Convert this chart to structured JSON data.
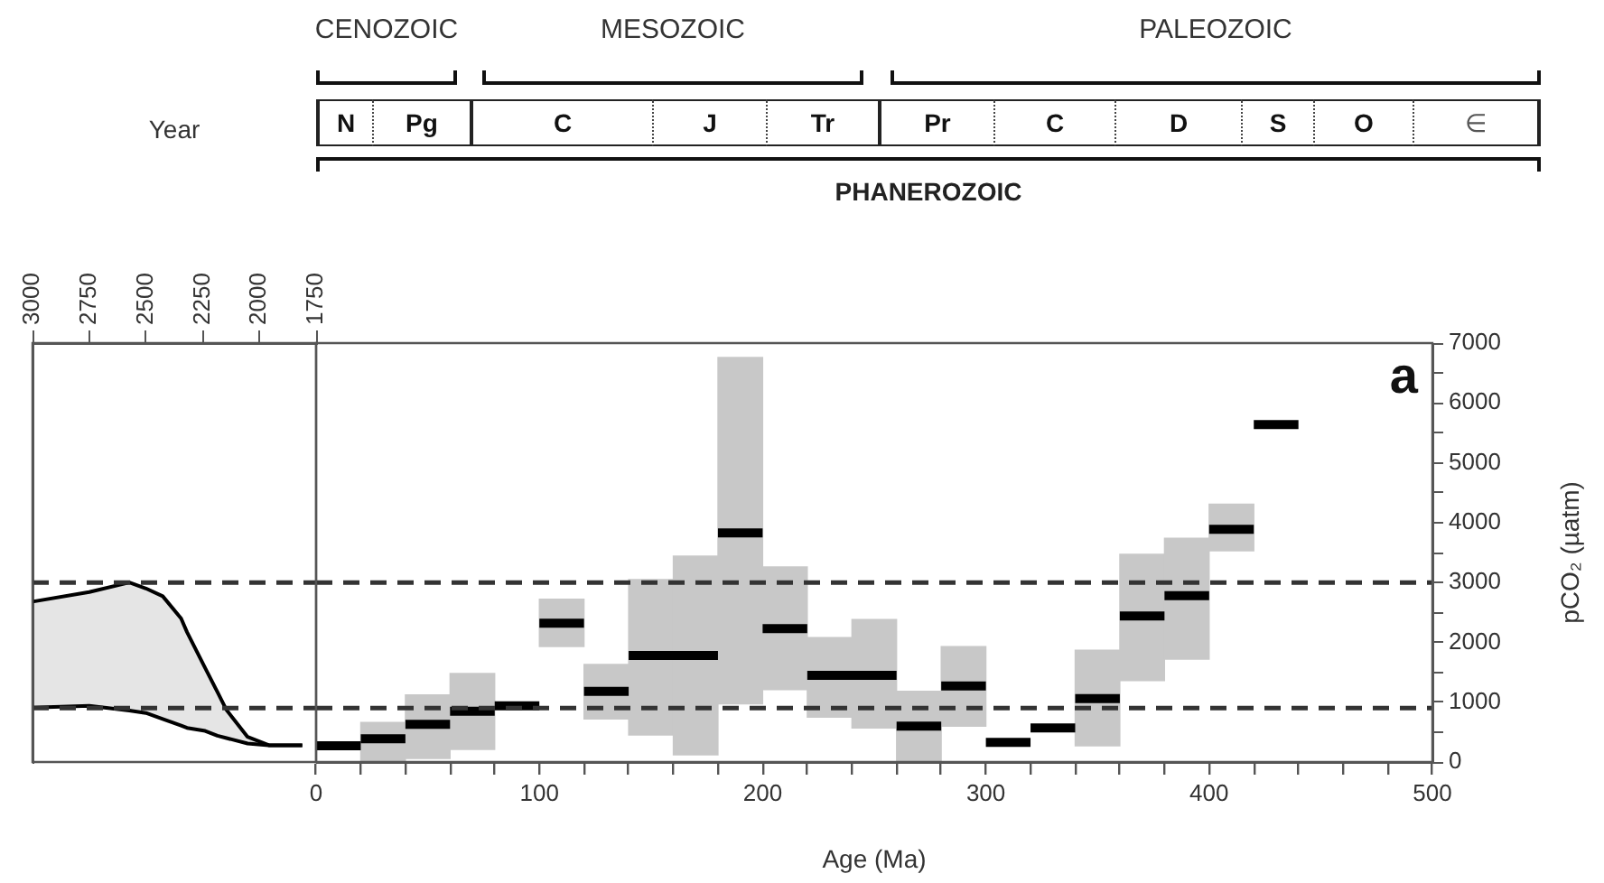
{
  "chart_data": [
    {
      "type": "line",
      "xlabel": "Year",
      "xlim": [
        3000,
        1750
      ],
      "xticks": [
        3000,
        2750,
        2500,
        2250,
        2000,
        1750
      ],
      "ylim": [
        0,
        7000
      ],
      "tick_labels": "x",
      "series": [
        {
          "type": "line",
          "color": "#000000",
          "x": [
            3000,
            2750,
            2573,
            2500,
            2426,
            2345,
            2319,
            2239,
            2185,
            2145,
            2052,
            1958,
            1811
          ],
          "values": [
            910,
            940,
            860,
            820,
            720,
            610,
            570,
            520,
            440,
            400,
            310,
            280,
            280
          ]
        },
        {
          "type": "line",
          "color": "#000000",
          "x": [
            3000,
            2750,
            2573,
            2500,
            2426,
            2345,
            2319,
            2239,
            2185,
            2145,
            2052,
            1958,
            1811
          ],
          "values": [
            2680,
            2840,
            3000,
            2900,
            2770,
            2400,
            2170,
            1570,
            1170,
            870,
            420,
            280,
            280
          ],
          "lower": [
            910,
            940,
            860,
            820,
            720,
            610,
            570,
            520,
            440,
            400,
            310,
            280,
            280
          ],
          "upper": [
            2680,
            2840,
            3000,
            2900,
            2770,
            2400,
            2170,
            1570,
            1170,
            870,
            420,
            280,
            280
          ]
        }
      ],
      "ref_lines": [
        {
          "axis": "y",
          "value": 3000,
          "color": "#333333",
          "line_style": "dashed"
        },
        {
          "axis": "y",
          "value": 900,
          "color": "#333333",
          "line_style": "dashed"
        }
      ]
    },
    {
      "type": "bar",
      "xlabel": "Age (Ma)",
      "ylabel": "pCO₂ (µatm)",
      "xlim": [
        0,
        500
      ],
      "xticks": [
        0,
        {
          "value": 20,
          "label": null
        },
        {
          "value": 40,
          "label": null
        },
        {
          "value": 60,
          "label": null
        },
        {
          "value": 80,
          "label": null
        },
        100,
        {
          "value": 120,
          "label": null
        },
        {
          "value": 140,
          "label": null
        },
        {
          "value": 160,
          "label": null
        },
        {
          "value": 180,
          "label": null
        },
        200,
        {
          "value": 220,
          "label": null
        },
        {
          "value": 240,
          "label": null
        },
        {
          "value": 260,
          "label": null
        },
        {
          "value": 280,
          "label": null
        },
        300,
        {
          "value": 320,
          "label": null
        },
        {
          "value": 340,
          "label": null
        },
        {
          "value": 360,
          "label": null
        },
        {
          "value": 380,
          "label": null
        },
        400,
        {
          "value": 420,
          "label": null
        },
        {
          "value": 440,
          "label": null
        },
        {
          "value": 460,
          "label": null
        },
        {
          "value": 480,
          "label": null
        },
        500
      ],
      "ylim": [
        0,
        7000
      ],
      "yticks": [
        0,
        {
          "value": 500,
          "label": null
        },
        1000,
        {
          "value": 1500,
          "label": null
        },
        2000,
        {
          "value": 2500,
          "label": null
        },
        3000,
        {
          "value": 3500,
          "label": null
        },
        4000,
        {
          "value": 4500,
          "label": null
        },
        5000,
        {
          "value": 5500,
          "label": null
        },
        6000,
        {
          "value": 6500,
          "label": null
        },
        7000
      ],
      "series": [
        {
          "type": "bar",
          "color": "#c8c8c8",
          "x": [
            30,
            50,
            70,
            110,
            130,
            150,
            170,
            190,
            210,
            230,
            250,
            270,
            290,
            350,
            370,
            390,
            410
          ],
          "base": [
            0,
            60,
            210,
            1930,
            720,
            450,
            120,
            970,
            1210,
            750,
            570,
            0,
            600,
            270,
            1360,
            1720,
            3530
          ],
          "values": [
            660,
            1060,
            1270,
            790,
            910,
            2600,
            3320,
            5790,
            2050,
            1330,
            1810,
            1180,
            1330,
            1600,
            2110,
            2020,
            780
          ]
        },
        {
          "type": "line",
          "color": "#000000",
          "x": [
            0,
            20
          ],
          "values": [
            270,
            270
          ]
        },
        {
          "type": "line",
          "color": "#000000",
          "x": [
            20,
            40
          ],
          "values": [
            390,
            390
          ]
        },
        {
          "type": "line",
          "color": "#000000",
          "x": [
            40,
            60
          ],
          "values": [
            630,
            630
          ]
        },
        {
          "type": "line",
          "color": "#000000",
          "x": [
            60,
            80
          ],
          "values": [
            850,
            850
          ]
        },
        {
          "type": "line",
          "color": "#000000",
          "x": [
            80,
            100
          ],
          "values": [
            940,
            940
          ]
        },
        {
          "type": "line",
          "color": "#000000",
          "x": [
            100,
            120
          ],
          "values": [
            2320,
            2320
          ]
        },
        {
          "type": "line",
          "color": "#000000",
          "x": [
            120,
            140
          ],
          "values": [
            1180,
            1180
          ]
        },
        {
          "type": "line",
          "color": "#000000",
          "x": [
            140,
            160,
            180
          ],
          "values": [
            1780,
            1780,
            1780
          ]
        },
        {
          "type": "line",
          "color": "#000000",
          "x": [
            180,
            200
          ],
          "values": [
            3830,
            3830
          ]
        },
        {
          "type": "line",
          "color": "#000000",
          "x": [
            200,
            220
          ],
          "values": [
            2230,
            2230
          ]
        },
        {
          "type": "line",
          "color": "#000000",
          "x": [
            220,
            240,
            260
          ],
          "values": [
            1450,
            1450,
            1450
          ]
        },
        {
          "type": "line",
          "color": "#000000",
          "x": [
            260,
            280
          ],
          "values": [
            600,
            600
          ]
        },
        {
          "type": "line",
          "color": "#000000",
          "x": [
            280,
            300
          ],
          "values": [
            1270,
            1270
          ]
        },
        {
          "type": "line",
          "color": "#000000",
          "x": [
            300,
            320
          ],
          "values": [
            330,
            330
          ]
        },
        {
          "type": "line",
          "color": "#000000",
          "x": [
            320,
            340
          ],
          "values": [
            570,
            570
          ]
        },
        {
          "type": "line",
          "color": "#000000",
          "x": [
            340,
            360
          ],
          "values": [
            1060,
            1060
          ]
        },
        {
          "type": "line",
          "color": "#000000",
          "x": [
            360,
            380
          ],
          "values": [
            2440,
            2440
          ]
        },
        {
          "type": "line",
          "color": "#000000",
          "x": [
            380,
            400
          ],
          "values": [
            2780,
            2780
          ]
        },
        {
          "type": "line",
          "color": "#000000",
          "x": [
            400,
            420
          ],
          "values": [
            3890,
            3890
          ]
        },
        {
          "type": "line",
          "color": "#000000",
          "x": [
            420,
            440
          ],
          "values": [
            5640,
            5640
          ]
        }
      ],
      "ref_lines": [
        {
          "axis": "y",
          "value": 3000,
          "color": "#333333",
          "line_style": "dashed"
        },
        {
          "axis": "y",
          "value": 900,
          "color": "#333333",
          "line_style": "dashed"
        }
      ],
      "annotations": [
        "CENOZOIC",
        "MESOZOIC",
        "PALEOZOIC",
        "N",
        "Pg",
        "C",
        "J",
        "Tr",
        "Pr",
        "C",
        "D",
        "S",
        "O",
        "∈",
        "PHANEROZOIC",
        "a"
      ]
    }
  ]
}
